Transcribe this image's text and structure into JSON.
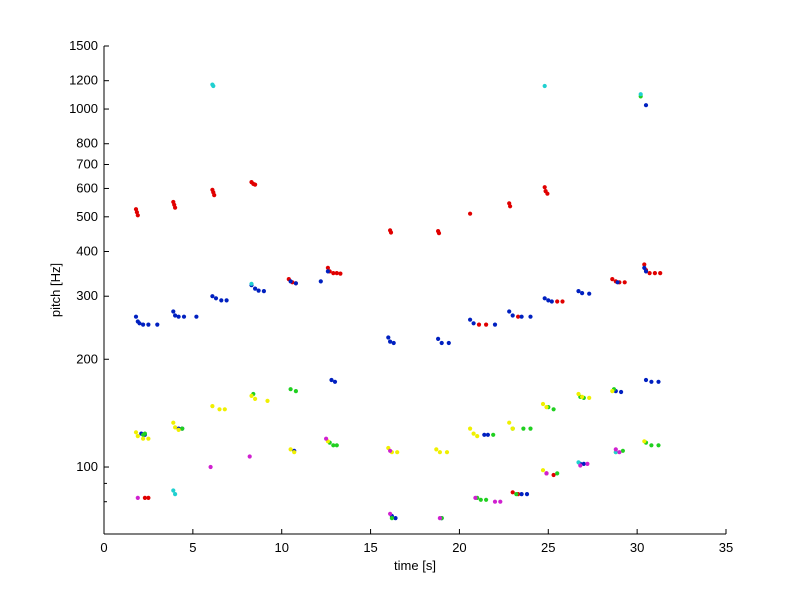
{
  "chart_data": {
    "type": "scatter",
    "title": "",
    "xlabel": "time [s]",
    "ylabel": "pitch [Hz]",
    "xlim": [
      0,
      35
    ],
    "ylim": [
      65,
      1500
    ],
    "yscale": "log",
    "grid": false,
    "legend": "none",
    "x_ticks": [
      0,
      5,
      10,
      15,
      20,
      25,
      30,
      35
    ],
    "x_tick_labels": [
      "0",
      "5",
      "10",
      "15",
      "20",
      "25",
      "30",
      "35"
    ],
    "y_ticks": [
      100,
      200,
      300,
      400,
      500,
      600,
      700,
      800,
      1000,
      1200,
      1500
    ],
    "y_tick_labels": [
      "100",
      "200",
      "300",
      "400",
      "500",
      "600",
      "700",
      "800",
      "1000",
      "1200",
      "1500"
    ],
    "y_minor_ticks": [
      90,
      80
    ],
    "colors": {
      "red": "#e00000",
      "blue": "#0020c0",
      "green": "#20d020",
      "yellow": "#f0f000",
      "cyan": "#20d0d0",
      "magenta": "#d020d0"
    },
    "series": [
      {
        "color": "red",
        "points": [
          [
            1.8,
            525
          ],
          [
            1.85,
            515
          ],
          [
            1.9,
            505
          ],
          [
            3.9,
            550
          ],
          [
            3.95,
            540
          ],
          [
            4.0,
            530
          ],
          [
            6.1,
            595
          ],
          [
            6.15,
            585
          ],
          [
            6.2,
            575
          ],
          [
            8.3,
            625
          ],
          [
            8.4,
            618
          ],
          [
            8.5,
            615
          ],
          [
            10.4,
            335
          ],
          [
            10.6,
            328
          ],
          [
            10.8,
            326
          ],
          [
            12.6,
            360
          ],
          [
            12.7,
            352
          ],
          [
            12.9,
            348
          ],
          [
            13.1,
            348
          ],
          [
            13.3,
            347
          ],
          [
            16.1,
            458
          ],
          [
            16.15,
            452
          ],
          [
            18.8,
            456
          ],
          [
            18.85,
            450
          ],
          [
            20.6,
            510
          ],
          [
            22.8,
            545
          ],
          [
            22.85,
            535
          ],
          [
            24.8,
            605
          ],
          [
            24.85,
            590
          ],
          [
            24.95,
            580
          ],
          [
            25.5,
            290
          ],
          [
            25.8,
            290
          ],
          [
            28.6,
            335
          ],
          [
            28.8,
            330
          ],
          [
            29.0,
            328
          ],
          [
            29.3,
            328
          ],
          [
            30.4,
            368
          ],
          [
            30.5,
            355
          ],
          [
            30.7,
            348
          ],
          [
            31.0,
            348
          ],
          [
            31.3,
            348
          ],
          [
            21.1,
            250
          ],
          [
            21.5,
            250
          ],
          [
            23.3,
            263
          ],
          [
            2.3,
            82
          ],
          [
            2.5,
            82
          ],
          [
            23.0,
            85
          ],
          [
            23.3,
            84
          ],
          [
            24.9,
            96
          ],
          [
            25.3,
            95
          ]
        ]
      },
      {
        "color": "blue",
        "points": [
          [
            1.8,
            263
          ],
          [
            1.9,
            255
          ],
          [
            2.0,
            252
          ],
          [
            2.2,
            250
          ],
          [
            2.5,
            250
          ],
          [
            3.0,
            250
          ],
          [
            3.9,
            272
          ],
          [
            4.0,
            265
          ],
          [
            4.2,
            263
          ],
          [
            4.5,
            263
          ],
          [
            5.2,
            263
          ],
          [
            6.1,
            300
          ],
          [
            6.3,
            296
          ],
          [
            6.6,
            292
          ],
          [
            6.9,
            292
          ],
          [
            8.3,
            322
          ],
          [
            8.5,
            315
          ],
          [
            8.7,
            311
          ],
          [
            9.0,
            310
          ],
          [
            10.5,
            330
          ],
          [
            10.8,
            326
          ],
          [
            12.2,
            330
          ],
          [
            12.6,
            352
          ],
          [
            16.0,
            230
          ],
          [
            16.1,
            224
          ],
          [
            16.3,
            222
          ],
          [
            18.8,
            228
          ],
          [
            19.0,
            222
          ],
          [
            19.4,
            222
          ],
          [
            20.6,
            258
          ],
          [
            20.8,
            252
          ],
          [
            22.0,
            250
          ],
          [
            22.8,
            272
          ],
          [
            23.0,
            265
          ],
          [
            23.5,
            263
          ],
          [
            24.0,
            263
          ],
          [
            24.8,
            296
          ],
          [
            25.0,
            292
          ],
          [
            25.2,
            290
          ],
          [
            26.7,
            310
          ],
          [
            26.9,
            306
          ],
          [
            27.3,
            305
          ],
          [
            28.9,
            328
          ],
          [
            30.4,
            360
          ],
          [
            30.5,
            352
          ],
          [
            30.5,
            1025
          ],
          [
            2.1,
            124
          ],
          [
            2.3,
            123
          ],
          [
            4.2,
            128
          ],
          [
            4.4,
            128
          ],
          [
            10.7,
            111
          ],
          [
            12.8,
            175
          ],
          [
            13.0,
            173
          ],
          [
            16.2,
            73
          ],
          [
            16.4,
            72
          ],
          [
            19.0,
            72
          ],
          [
            21.4,
            123
          ],
          [
            21.6,
            123
          ],
          [
            26.8,
            102
          ],
          [
            27.0,
            102
          ],
          [
            28.8,
            163
          ],
          [
            29.1,
            162
          ],
          [
            30.5,
            175
          ],
          [
            30.8,
            173
          ],
          [
            31.2,
            173
          ],
          [
            23.5,
            84
          ],
          [
            23.8,
            84
          ]
        ]
      },
      {
        "color": "green",
        "points": [
          [
            2.2,
            123
          ],
          [
            2.3,
            124
          ],
          [
            4.4,
            128
          ],
          [
            8.4,
            160
          ],
          [
            10.5,
            165
          ],
          [
            10.8,
            163
          ],
          [
            12.7,
            117
          ],
          [
            12.9,
            115
          ],
          [
            13.1,
            115
          ],
          [
            16.2,
            72
          ],
          [
            19.0,
            72
          ],
          [
            21.0,
            82
          ],
          [
            21.2,
            81
          ],
          [
            21.5,
            81
          ],
          [
            21.9,
            123
          ],
          [
            23.0,
            128
          ],
          [
            23.6,
            128
          ],
          [
            24.0,
            128
          ],
          [
            25.0,
            147
          ],
          [
            25.3,
            145
          ],
          [
            26.8,
            157
          ],
          [
            27.0,
            156
          ],
          [
            28.7,
            165
          ],
          [
            29.2,
            111
          ],
          [
            30.2,
            1085
          ],
          [
            30.5,
            117
          ],
          [
            30.8,
            115
          ],
          [
            31.2,
            115
          ],
          [
            25.5,
            96
          ],
          [
            23.2,
            84
          ]
        ]
      },
      {
        "color": "yellow",
        "points": [
          [
            1.8,
            125
          ],
          [
            1.9,
            122
          ],
          [
            2.2,
            120
          ],
          [
            2.5,
            120
          ],
          [
            3.9,
            133
          ],
          [
            4.0,
            129
          ],
          [
            4.2,
            127
          ],
          [
            6.1,
            148
          ],
          [
            6.5,
            145
          ],
          [
            6.8,
            145
          ],
          [
            8.3,
            158
          ],
          [
            8.5,
            155
          ],
          [
            9.2,
            153
          ],
          [
            10.5,
            112
          ],
          [
            10.7,
            110
          ],
          [
            12.6,
            118
          ],
          [
            16.0,
            113
          ],
          [
            16.2,
            110
          ],
          [
            16.5,
            110
          ],
          [
            18.7,
            112
          ],
          [
            18.9,
            110
          ],
          [
            19.3,
            110
          ],
          [
            20.6,
            128
          ],
          [
            20.8,
            124
          ],
          [
            21.0,
            122
          ],
          [
            22.8,
            133
          ],
          [
            23.0,
            128
          ],
          [
            24.7,
            150
          ],
          [
            24.9,
            147
          ],
          [
            26.7,
            160
          ],
          [
            26.9,
            157
          ],
          [
            27.3,
            156
          ],
          [
            28.8,
            110
          ],
          [
            28.6,
            163
          ],
          [
            30.4,
            118
          ],
          [
            24.7,
            98
          ]
        ]
      },
      {
        "color": "cyan",
        "points": [
          [
            6.1,
            1170
          ],
          [
            6.15,
            1160
          ],
          [
            3.9,
            86
          ],
          [
            4.0,
            84
          ],
          [
            8.3,
            325
          ],
          [
            24.8,
            1160
          ],
          [
            30.2,
            1100
          ],
          [
            28.8,
            110
          ],
          [
            26.7,
            103
          ]
        ]
      },
      {
        "color": "magenta",
        "points": [
          [
            6.0,
            100
          ],
          [
            8.2,
            107
          ],
          [
            16.1,
            74
          ],
          [
            18.9,
            72
          ],
          [
            22.0,
            80
          ],
          [
            22.3,
            80
          ],
          [
            24.9,
            96
          ],
          [
            26.8,
            101
          ],
          [
            27.2,
            102
          ],
          [
            28.8,
            112
          ],
          [
            29.0,
            110
          ],
          [
            12.5,
            120
          ],
          [
            16.1,
            111
          ],
          [
            1.9,
            82
          ],
          [
            20.9,
            82
          ]
        ]
      }
    ]
  }
}
